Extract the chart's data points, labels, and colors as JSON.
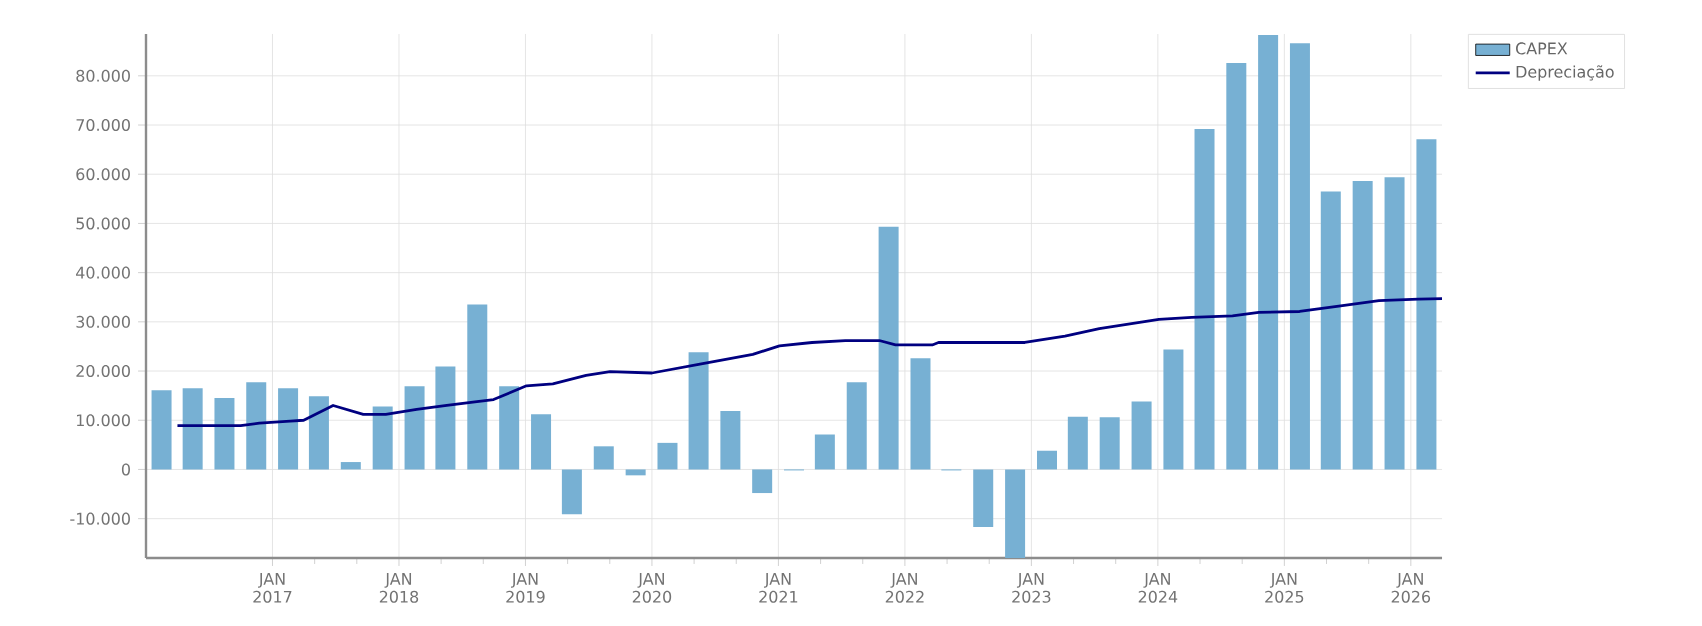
{
  "chart_data": {
    "type": "bar",
    "xlim": [
      "2016-01-01",
      "2026-04-01"
    ],
    "xticks": [
      {
        "value": "2017-01-01",
        "label": "JAN 2017"
      },
      {
        "value": "2018-01-01",
        "label": "JAN 2018"
      },
      {
        "value": "2019-01-01",
        "label": "JAN 2019"
      },
      {
        "value": "2020-01-01",
        "label": "JAN 2020"
      },
      {
        "value": "2021-01-01",
        "label": "JAN 2021"
      },
      {
        "value": "2022-01-01",
        "label": "JAN 2022"
      },
      {
        "value": "2023-01-01",
        "label": "JAN 2023"
      },
      {
        "value": "2024-01-01",
        "label": "JAN 2024"
      },
      {
        "value": "2025-01-01",
        "label": "JAN 2025"
      },
      {
        "value": "2026-01-01",
        "label": "JAN 2026"
      }
    ],
    "ylim": [
      -18000,
      88500
    ],
    "yticks": [
      {
        "value": -10000,
        "label": "-10.000"
      },
      {
        "value": 0,
        "label": "0"
      },
      {
        "value": 10000,
        "label": "10.000"
      },
      {
        "value": 20000,
        "label": "20.000"
      },
      {
        "value": 30000,
        "label": "30.000"
      },
      {
        "value": 40000,
        "label": "40.000"
      },
      {
        "value": 50000,
        "label": "50.000"
      },
      {
        "value": 60000,
        "label": "60.000"
      },
      {
        "value": 70000,
        "label": "70.000"
      },
      {
        "value": 80000,
        "label": "80.000"
      }
    ],
    "grid": true,
    "legend": "top right",
    "series": [
      {
        "name": "CAPEX",
        "color": "#77b0d3",
        "x": [
          "2016-02-15",
          "2016-05-15",
          "2016-08-15",
          "2016-11-15",
          "2017-02-15",
          "2017-05-15",
          "2017-08-15",
          "2017-11-15",
          "2018-02-15",
          "2018-05-15",
          "2018-08-15",
          "2018-11-15",
          "2019-02-15",
          "2019-05-15",
          "2019-08-15",
          "2019-11-15",
          "2020-02-15",
          "2020-05-15",
          "2020-08-15",
          "2020-11-15",
          "2021-02-15",
          "2021-05-15",
          "2021-08-15",
          "2021-11-15",
          "2022-02-15",
          "2022-05-15",
          "2022-08-15",
          "2022-11-15",
          "2023-02-15",
          "2023-05-15",
          "2023-08-15",
          "2023-11-15",
          "2024-02-15",
          "2024-05-15",
          "2024-08-15",
          "2024-11-15",
          "2025-02-15",
          "2025-05-15",
          "2025-08-15",
          "2025-11-15",
          "2026-02-15"
        ],
        "values": [
          16100,
          16500,
          14500,
          17700,
          16500,
          14900,
          1500,
          12800,
          16900,
          20900,
          33500,
          16900,
          11200,
          -9100,
          4700,
          -1200,
          5400,
          23800,
          11900,
          -4800,
          -200,
          7100,
          17700,
          49300,
          22600,
          -200,
          -11700,
          -18000,
          3800,
          10700,
          10600,
          13800,
          24400,
          69200,
          82600,
          88300,
          86600,
          56500,
          58600,
          59400,
          67100
        ]
      },
      {
        "name": "Depreciação",
        "type": "line",
        "color": "#000080",
        "x": [
          "2016-04-01",
          "2016-10-01",
          "2016-11-24",
          "2017-02-21",
          "2017-04-01",
          "2017-06-25",
          "2017-09-20",
          "2017-11-24",
          "2018-02-21",
          "2018-05-19",
          "2018-08-14",
          "2018-10-01",
          "2019-01-04",
          "2019-03-21",
          "2019-06-25",
          "2019-09-02",
          "2020-01-01",
          "2020-05-19",
          "2020-10-19",
          "2021-01-04",
          "2021-04-08",
          "2021-07-13",
          "2021-10-19",
          "2021-12-05",
          "2022-03-21",
          "2022-04-08",
          "2022-12-13",
          "2023-04-08",
          "2023-07-16",
          "2024-01-04",
          "2024-04-08",
          "2024-08-04",
          "2024-10-19",
          "2025-02-14",
          "2025-06-07",
          "2025-10-01",
          "2026-01-23",
          "2026-04-01"
        ],
        "values": [
          8900,
          8900,
          9400,
          9800,
          10000,
          13000,
          11200,
          11200,
          12200,
          13000,
          13800,
          14200,
          17000,
          17400,
          19100,
          19900,
          19600,
          21400,
          23400,
          25100,
          25800,
          26200,
          26200,
          25300,
          25300,
          25800,
          25800,
          27100,
          28600,
          30500,
          30900,
          31200,
          31900,
          32100,
          33200,
          34300,
          34600,
          34700
        ]
      }
    ]
  }
}
